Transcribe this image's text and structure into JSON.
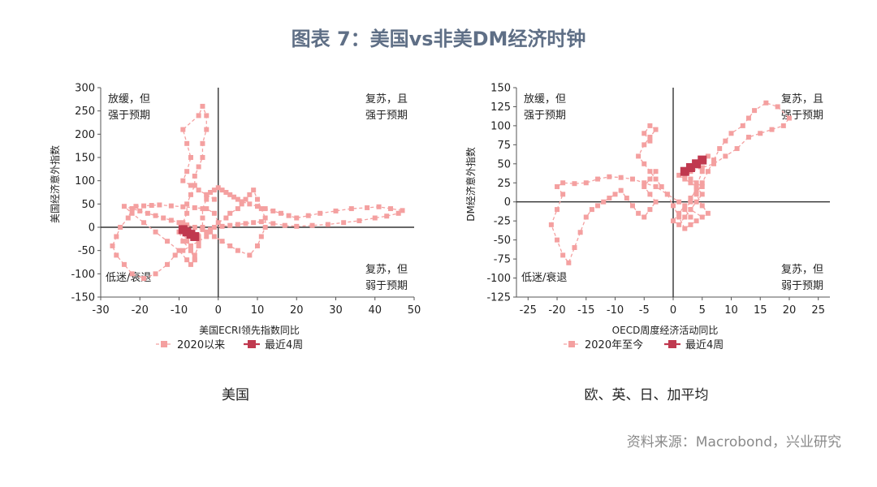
{
  "title": "图表 7：美国vs非美DM经济时钟",
  "source": "资料来源：Macrobond，兴业研究",
  "colors": {
    "trail": "#f4a0a0",
    "recent": "#c0394f",
    "axis": "#555555",
    "zero": "#333333"
  },
  "chart_data": [
    {
      "type": "scatter",
      "caption": "美国",
      "xlabel": "美国ECRI领先指数同比",
      "ylabel": "美国经济意外指数",
      "xlim": [
        -30,
        50
      ],
      "ylim": [
        -150,
        300
      ],
      "xticks": [
        "-30",
        "-20",
        "-10",
        "0",
        "10",
        "20",
        "30",
        "40",
        "50"
      ],
      "yticks": [
        "-150",
        "-100",
        "-50",
        "0",
        "50",
        "100",
        "150",
        "200",
        "250",
        "300"
      ],
      "quadrants": {
        "top_left": [
          "放缓，但",
          "强于预期"
        ],
        "top_right": [
          "复苏，且",
          "强于预期"
        ],
        "bottom_left": [
          "低迷/衰退"
        ],
        "bottom_right": [
          "复苏，但",
          "弱于预期"
        ]
      },
      "legend": [
        "2020以来",
        "最近4周"
      ],
      "series": [
        {
          "name": "2020以来",
          "x": [
            -1,
            -3,
            -5,
            -7,
            -9,
            -8,
            -7,
            -8,
            -9,
            -5,
            -4,
            -3,
            -3,
            -4,
            -4,
            -5,
            -6,
            -6,
            -7,
            -8,
            -8,
            -9,
            -9,
            -8,
            -7,
            -6,
            -6,
            -5,
            -5,
            -4,
            -4,
            -4,
            -3,
            -3,
            -2,
            -1,
            0,
            1,
            2,
            3,
            4,
            5,
            6,
            8,
            10,
            12,
            14,
            16,
            18,
            20,
            23,
            26,
            30,
            34,
            38,
            41,
            44,
            47,
            46,
            43,
            40,
            36,
            32,
            28,
            24,
            20,
            17,
            14,
            11,
            9,
            7,
            5,
            3,
            1,
            -1,
            -2,
            -3,
            -1,
            1,
            3,
            5,
            8,
            10,
            11,
            12,
            12,
            11,
            10,
            9,
            8,
            7,
            6,
            5,
            3,
            2,
            0,
            -1,
            -3,
            -6,
            -9,
            -12,
            -15,
            -17,
            -19,
            -21,
            -22,
            -23,
            -25,
            -26,
            -27,
            -26,
            -24,
            -22,
            -19,
            -16,
            -13,
            -11,
            -9,
            -7,
            -5,
            -3,
            -2,
            -4,
            -6,
            -8,
            -10,
            -12,
            -14,
            -16,
            -18,
            -20,
            -22,
            -24,
            -22,
            -19,
            -16,
            -13,
            -10,
            -8,
            -7,
            -6,
            -7,
            -9,
            -10,
            -9
          ],
          "y": [
            60,
            70,
            80,
            90,
            100,
            120,
            150,
            180,
            210,
            240,
            260,
            240,
            210,
            180,
            150,
            130,
            110,
            90,
            70,
            50,
            30,
            10,
            -10,
            -30,
            -50,
            -70,
            -60,
            -40,
            -20,
            0,
            20,
            40,
            60,
            70,
            75,
            80,
            85,
            80,
            75,
            70,
            65,
            60,
            55,
            50,
            45,
            40,
            35,
            30,
            25,
            20,
            25,
            30,
            35,
            40,
            42,
            44,
            40,
            36,
            30,
            24,
            20,
            14,
            10,
            6,
            4,
            2,
            4,
            8,
            12,
            10,
            8,
            6,
            4,
            2,
            0,
            -5,
            -10,
            -20,
            -30,
            -40,
            -50,
            -60,
            -40,
            -20,
            0,
            20,
            40,
            60,
            80,
            70,
            60,
            50,
            40,
            30,
            20,
            10,
            30,
            40,
            42,
            44,
            46,
            48,
            47,
            46,
            45,
            40,
            20,
            0,
            -20,
            -40,
            -60,
            -80,
            -100,
            -110,
            -100,
            -80,
            -60,
            -50,
            -40,
            -30,
            -20,
            -10,
            -5,
            0,
            5,
            10,
            15,
            20,
            25,
            30,
            35,
            40,
            45,
            30,
            10,
            -10,
            -30,
            -50,
            -70,
            -80,
            -70,
            -50,
            -30,
            -10,
            0
          ]
        },
        {
          "name": "最近4周",
          "x": [
            -9,
            -8,
            -7,
            -6
          ],
          "y": [
            -5,
            -10,
            -15,
            -20
          ]
        }
      ]
    },
    {
      "type": "scatter",
      "caption": "欧、英、日、加平均",
      "xlabel": "OECD周度经济活动同比",
      "ylabel": "DM经济意外指数",
      "xlim": [
        -27,
        27
      ],
      "ylim": [
        -125,
        150
      ],
      "xticks": [
        "-25",
        "-20",
        "-15",
        "-10",
        "-5",
        "0",
        "5",
        "10",
        "15",
        "20",
        "25"
      ],
      "yticks": [
        "-125",
        "-100",
        "-75",
        "-50",
        "-25",
        "0",
        "25",
        "50",
        "75",
        "100",
        "125",
        "150"
      ],
      "quadrants": {
        "top_left": [
          "放缓，但",
          "强于预期"
        ],
        "top_right": [
          "复苏，且",
          "强于预期"
        ],
        "bottom_left": [
          "低迷/衰退"
        ],
        "bottom_right": [
          "复苏，但",
          "弱于预期"
        ]
      },
      "legend": [
        "2020年至今",
        "最近4周"
      ],
      "series": [
        {
          "name": "2020年至今",
          "x": [
            -4,
            -5,
            -4,
            -3,
            -4,
            -5,
            -6,
            -5,
            -4,
            -3,
            -2,
            -1,
            1,
            3,
            5,
            6,
            5,
            4,
            5,
            6,
            7,
            8,
            9,
            10,
            12,
            13,
            14,
            16,
            18,
            20,
            19,
            17,
            15,
            13,
            11,
            9,
            7,
            5,
            3,
            2,
            3,
            4,
            5,
            4,
            3,
            2,
            1,
            0,
            1,
            2,
            3,
            4,
            5,
            4,
            3,
            2,
            1,
            2,
            3,
            4,
            5,
            6,
            5,
            4,
            3,
            2,
            3,
            4,
            3,
            2,
            1,
            0,
            -1,
            -3,
            -5,
            -7,
            -9,
            -11,
            -13,
            -15,
            -17,
            -19,
            -20,
            -19,
            -20,
            -21,
            -20,
            -19,
            -18,
            -17,
            -16,
            -15,
            -14,
            -13,
            -12,
            -11,
            -10,
            -9,
            -8,
            -7,
            -6,
            -5,
            -4,
            -3,
            -4,
            -5,
            -4,
            -3
          ],
          "y": [
            80,
            90,
            100,
            95,
            85,
            75,
            60,
            50,
            40,
            30,
            20,
            10,
            0,
            -10,
            -20,
            -15,
            -5,
            10,
            25,
            40,
            55,
            70,
            80,
            90,
            100,
            110,
            120,
            130,
            125,
            110,
            100,
            95,
            90,
            85,
            70,
            60,
            50,
            45,
            40,
            35,
            30,
            25,
            20,
            15,
            5,
            -5,
            -15,
            -25,
            -30,
            -20,
            -10,
            0,
            10,
            20,
            25,
            30,
            35,
            40,
            45,
            50,
            55,
            60,
            40,
            20,
            0,
            -10,
            -20,
            -25,
            -30,
            -35,
            -20,
            -5,
            10,
            20,
            25,
            30,
            32,
            33,
            30,
            25,
            24,
            25,
            20,
            10,
            -10,
            -30,
            -50,
            -70,
            -80,
            -60,
            -40,
            -20,
            -10,
            -5,
            0,
            5,
            10,
            15,
            5,
            -5,
            -15,
            -20,
            -10,
            0,
            10,
            20,
            30,
            40
          ]
        },
        {
          "name": "最近4周",
          "x": [
            2,
            3,
            4,
            5
          ],
          "y": [
            40,
            45,
            50,
            55
          ]
        }
      ]
    }
  ]
}
